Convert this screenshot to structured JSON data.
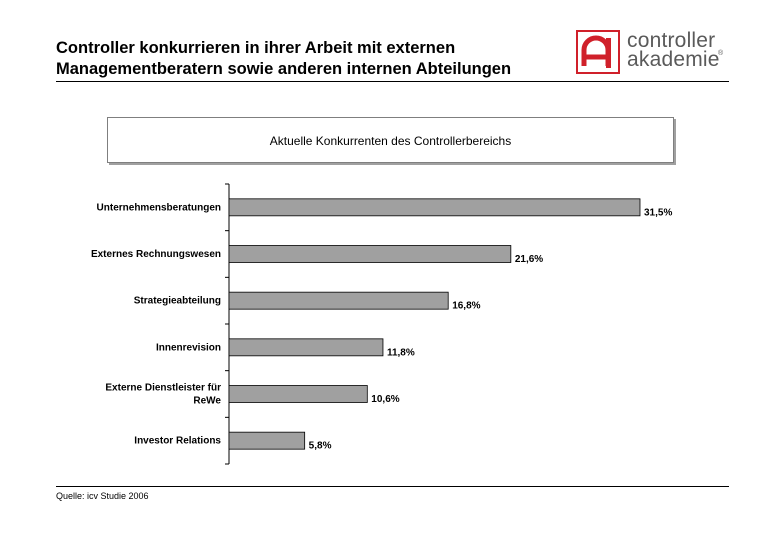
{
  "page": {
    "title_line1": "Controller konkurrieren in ihrer Arbeit mit externen",
    "title_line2": "Managementberatern sowie anderen internen Abteilungen",
    "source": "Quelle: icv Studie 2006"
  },
  "logo": {
    "line1": "controller",
    "line2": "akademie",
    "registered": "®",
    "accent_color": "#d0202a"
  },
  "chart_data": {
    "type": "bar",
    "orientation": "horizontal",
    "title": "Aktuelle Konkurrenten des Controllerbereichs",
    "categories": [
      [
        "Unternehmensberatungen"
      ],
      [
        "Externes Rechnungswesen"
      ],
      [
        "Strategieabteilung"
      ],
      [
        "Innenrevision"
      ],
      [
        "Externe Dienstleister für",
        "ReWe"
      ],
      [
        "Investor Relations"
      ]
    ],
    "values": [
      31.5,
      21.6,
      16.8,
      11.8,
      10.6,
      5.8
    ],
    "value_labels": [
      "31,5%",
      "21,6%",
      "16,8%",
      "11,8%",
      "10,6%",
      "5,8%"
    ],
    "xlim": [
      0,
      32
    ],
    "bar_color": "#a0a0a0",
    "grid": false
  }
}
